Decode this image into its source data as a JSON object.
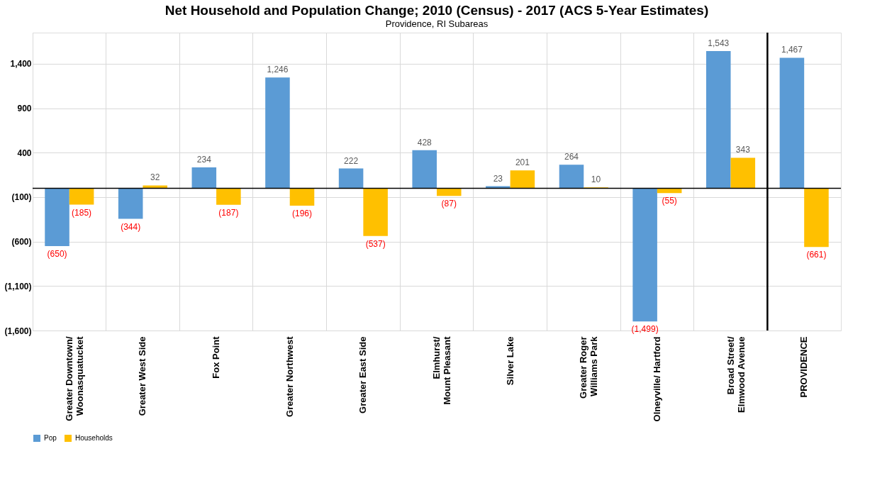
{
  "chart_data": {
    "type": "bar",
    "title": "Net Household and Population Change; 2010 (Census) - 2017 (ACS 5-Year Estimates)",
    "subtitle": "Providence, RI Subareas",
    "categories": [
      "Greater Downtown/\nWoonasquatucket",
      "Greater West Side",
      "Fox Point",
      "Greater Northwest",
      "Greater East Side",
      "Elmhurst/\nMount Pleasant",
      "Silver Lake",
      "Greater Roger\nWilliams Park",
      "Olneyville/ Hartford",
      "Broad Street/\nElmwood Avenue",
      "PROVIDENCE"
    ],
    "series": [
      {
        "name": "Pop",
        "color": "#5b9bd5",
        "values": [
          -650,
          -344,
          234,
          1246,
          222,
          428,
          23,
          264,
          -1499,
          1543,
          1467
        ],
        "value_labels": [
          "(650)",
          "(344)",
          "234",
          "1,246",
          "222",
          "428",
          "23",
          "264",
          "(1,499)",
          "1,543",
          "1,467"
        ]
      },
      {
        "name": "Households",
        "color": "#ffc000",
        "values": [
          -185,
          32,
          -187,
          -196,
          -537,
          -87,
          201,
          10,
          -55,
          343,
          -661
        ],
        "value_labels": [
          "(185)",
          "32",
          "(187)",
          "(196)",
          "(537)",
          "(87)",
          "201",
          "10",
          "(55)",
          "343",
          "(661)"
        ]
      }
    ],
    "ylim": [
      -1600,
      1750
    ],
    "yticks": [
      {
        "value": 1400,
        "label": "1,400"
      },
      900,
      400,
      {
        "value": -100,
        "label": "(100)"
      },
      {
        "value": -600,
        "label": "(600)"
      },
      {
        "value": -1100,
        "label": "(1,100)"
      },
      {
        "value": -1600,
        "label": "(1,600)"
      }
    ],
    "ref_lines": [
      {
        "axis": "x",
        "value": "PROVIDENCE",
        "color": "#000000"
      }
    ],
    "grid": true,
    "legend": "bottom"
  }
}
